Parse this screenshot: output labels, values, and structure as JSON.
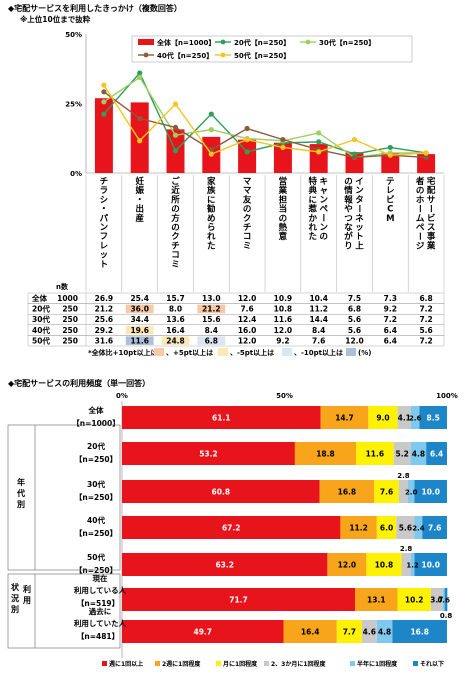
{
  "chart_data": [
    {
      "type": "bar",
      "title": "◆宅配サービスを利用したきっかけ（複数回答）",
      "subtitle": "※上位10位まで抜粋",
      "ylim": [
        0,
        50
      ],
      "yticks": [
        "0%",
        "25%",
        "50%"
      ],
      "categories": [
        "チラシ・パンフレット",
        "妊娠・出産",
        "ご近所の方のクチコミ",
        "家族に勧められた",
        "ママ友のクチコミ",
        "営業担当の熱意",
        "キャンペーンの特典に惹かれた",
        "インターネット上の情報やつながり",
        "テレビCM",
        "宅配サービス事業者のホームページ"
      ],
      "bar_series": {
        "name": "全体【n=1000】",
        "values": [
          26.9,
          25.4,
          15.7,
          13.0,
          12.0,
          10.9,
          10.4,
          7.5,
          7.3,
          6.8
        ]
      },
      "series": [
        {
          "name": "20代【n=250】",
          "color": "#2e9e5b",
          "values": [
            21.2,
            36.0,
            8.0,
            21.2,
            7.6,
            10.8,
            11.2,
            6.8,
            9.2,
            7.2
          ]
        },
        {
          "name": "30代【n=250】",
          "color": "#9bcf62",
          "values": [
            25.6,
            34.4,
            13.6,
            15.6,
            12.4,
            11.6,
            14.4,
            5.6,
            7.2,
            7.2
          ]
        },
        {
          "name": "40代【n=250】",
          "color": "#8c5a3c",
          "values": [
            29.2,
            19.6,
            16.4,
            8.4,
            16.0,
            12.0,
            8.4,
            5.6,
            6.4,
            5.6
          ]
        },
        {
          "name": "50代【n=250】",
          "color": "#f6c51d",
          "values": [
            31.6,
            11.6,
            24.8,
            6.8,
            12.0,
            9.2,
            7.6,
            12.0,
            6.4,
            7.2
          ]
        }
      ],
      "table": {
        "header_n": "n数",
        "rows": [
          {
            "label": "全体",
            "n": "1000",
            "cells": [
              "26.9",
              "25.4",
              "15.7",
              "13.0",
              "12.0",
              "10.9",
              "10.4",
              "7.5",
              "7.3",
              "6.8"
            ]
          },
          {
            "label": "20代",
            "n": "250",
            "cells": [
              "21.2",
              "36.0",
              "8.0",
              "21.2",
              "7.6",
              "10.8",
              "11.2",
              "6.8",
              "9.2",
              "7.2"
            ]
          },
          {
            "label": "30代",
            "n": "250",
            "cells": [
              "25.6",
              "34.4",
              "13.6",
              "15.6",
              "12.4",
              "11.6",
              "14.4",
              "5.6",
              "7.2",
              "7.2"
            ]
          },
          {
            "label": "40代",
            "n": "250",
            "cells": [
              "29.2",
              "19.6",
              "16.4",
              "8.4",
              "16.0",
              "12.0",
              "8.4",
              "5.6",
              "6.4",
              "5.6"
            ]
          },
          {
            "label": "50代",
            "n": "250",
            "cells": [
              "31.6",
              "11.6",
              "24.8",
              "6.8",
              "12.0",
              "9.2",
              "7.6",
              "12.0",
              "6.4",
              "7.2"
            ]
          }
        ],
        "highlights": [
          {
            "row": 1,
            "col": 1,
            "color": "#f8c9a4"
          },
          {
            "row": 1,
            "col": 3,
            "color": "#f8c9a4"
          },
          {
            "row": 4,
            "col": 2,
            "color": "#fce8b6"
          },
          {
            "row": 4,
            "col": 1,
            "color": "#aebfd8"
          },
          {
            "row": 3,
            "col": 1,
            "color": "#fce8b6"
          },
          {
            "row": 4,
            "col": 3,
            "color": "#dce5f0"
          },
          {
            "row": 4,
            "col": 0,
            "color": "#ffffff"
          }
        ],
        "legend_prefix": "*全体比+10pt以上は",
        "legend_items": [
          {
            "text": "、+5pt以上は",
            "color": "#f8c9a4"
          },
          {
            "text": "、-5pt以上は",
            "color": "#fce8b6"
          },
          {
            "text": "、-10pt以上は",
            "color": "#dce5f0"
          },
          {
            "text": "(%)",
            "color": "#aebfd8"
          }
        ]
      }
    },
    {
      "type": "bar",
      "orientation": "horizontal-stacked",
      "title": "◆宅配サービスの利用頻度（単一回答）",
      "xlim": [
        0,
        100
      ],
      "xticks": [
        "0%",
        "50%",
        "100%"
      ],
      "legend": [
        {
          "name": "週に1回以上",
          "color": "#e8141b"
        },
        {
          "name": "2週に1回程度",
          "color": "#f8a51c"
        },
        {
          "name": "月に1回程度",
          "color": "#fff200"
        },
        {
          "name": "2、3か月に1回程度",
          "color": "#c9c9c9"
        },
        {
          "name": "半年に1回程度",
          "color": "#7fc9ef"
        },
        {
          "name": "それ以下",
          "color": "#1d86c8"
        }
      ],
      "group_labels": {
        "age": "年代別",
        "status": "利用状況別"
      },
      "rows": [
        {
          "label": "全体",
          "n": "【n=1000】",
          "values": [
            61.1,
            14.7,
            9.0,
            4.1,
            2.6,
            8.5
          ]
        },
        {
          "label": "20代",
          "n": "【n=250】",
          "values": [
            53.2,
            18.8,
            11.6,
            5.2,
            4.8,
            6.4
          ]
        },
        {
          "label": "30代",
          "n": "【n=250】",
          "values": [
            60.8,
            16.8,
            7.6,
            2.8,
            2.0,
            10.0
          ]
        },
        {
          "label": "40代",
          "n": "【n=250】",
          "values": [
            67.2,
            11.2,
            6.0,
            5.6,
            2.4,
            7.6
          ]
        },
        {
          "label": "50代",
          "n": "【n=250】",
          "values": [
            63.2,
            12.0,
            10.8,
            2.8,
            1.2,
            10.0
          ]
        },
        {
          "label": "現在利用している人",
          "n": "【n=519】",
          "values": [
            71.7,
            13.1,
            10.2,
            3.7,
            0.6,
            0.8
          ]
        },
        {
          "label": "過去に利用していた人",
          "n": "【n=481】",
          "values": [
            49.7,
            16.4,
            7.7,
            4.6,
            4.8,
            16.8
          ]
        }
      ]
    }
  ]
}
